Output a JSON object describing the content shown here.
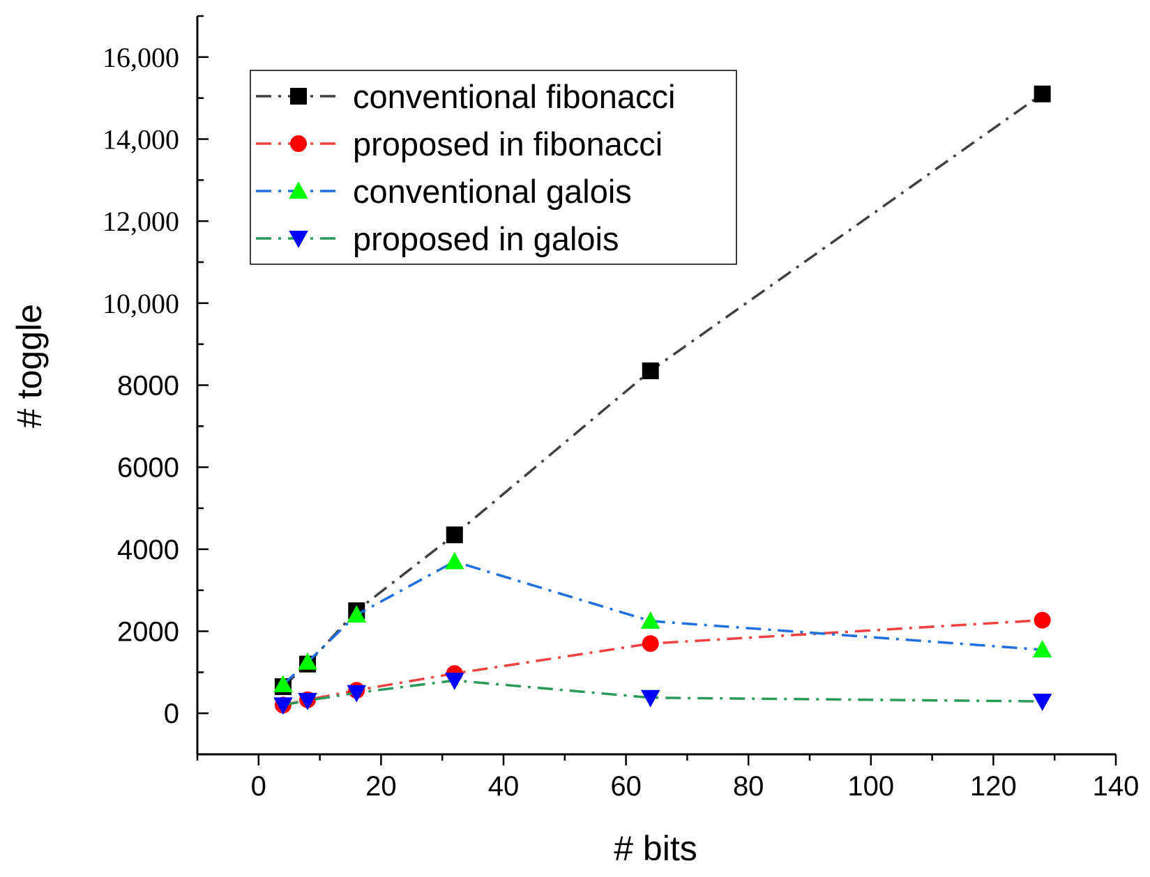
{
  "chart_data": {
    "type": "line",
    "title": "",
    "xlabel": "# bits",
    "ylabel": "# toggle",
    "xlim": [
      -10,
      140
    ],
    "ylim": [
      -1000,
      17000
    ],
    "x_ticks": [
      0,
      20,
      40,
      60,
      80,
      100,
      120,
      140
    ],
    "x_tick_labels": [
      "0",
      "20",
      "40",
      "60",
      "80",
      "100",
      "120",
      "140"
    ],
    "y_ticks": [
      0,
      2000,
      4000,
      6000,
      8000,
      10000,
      12000,
      14000,
      16000
    ],
    "y_tick_labels": [
      "0",
      "2000",
      "4000",
      "6000",
      "8000",
      "10,000",
      "12,000",
      "14,000",
      "16,000"
    ],
    "legend_position": "top-left",
    "series": [
      {
        "name": "conventional fibonacci",
        "line_color": "#404040",
        "marker": "square",
        "marker_color": "#000000",
        "x": [
          4,
          8,
          16,
          32,
          64,
          128
        ],
        "values": [
          650,
          1200,
          2500,
          4350,
          8350,
          15100
        ]
      },
      {
        "name": "proposed in fibonacci",
        "line_color": "#f04040",
        "marker": "circle",
        "marker_color": "#ff0000",
        "x": [
          4,
          8,
          16,
          32,
          64,
          128
        ],
        "values": [
          200,
          330,
          560,
          970,
          1700,
          2270
        ]
      },
      {
        "name": "conventional galois",
        "line_color": "#1f6fe0",
        "marker": "triangle-up",
        "marker_color": "#00ff00",
        "x": [
          4,
          8,
          16,
          32,
          64,
          128
        ],
        "values": [
          700,
          1250,
          2400,
          3700,
          2250,
          1550
        ]
      },
      {
        "name": "proposed in galois",
        "line_color": "#2a9a5a",
        "marker": "triangle-down",
        "marker_color": "#0000ff",
        "x": [
          4,
          8,
          16,
          32,
          64,
          128
        ],
        "values": [
          200,
          310,
          500,
          800,
          380,
          290
        ]
      }
    ]
  }
}
